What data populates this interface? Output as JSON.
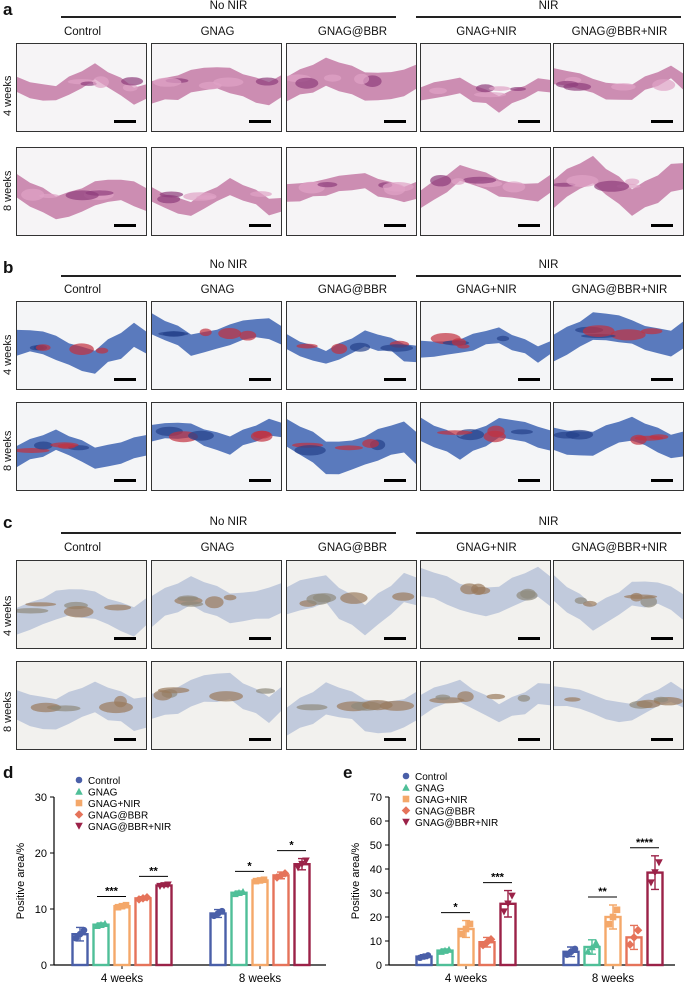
{
  "panels": [
    {
      "letter": "a",
      "group_left": "No NIR",
      "group_right": "NIR",
      "columns": [
        "Control",
        "GNAG",
        "GNAG@BBR",
        "GNAG+NIR",
        "GNAG@BBR+NIR"
      ],
      "rows": [
        "4 weeks",
        "8 weeks"
      ],
      "stain": "he"
    },
    {
      "letter": "b",
      "group_left": "No NIR",
      "group_right": "NIR",
      "columns": [
        "Control",
        "GNAG",
        "GNAG@BBR",
        "GNAG+NIR",
        "GNAG@BBR+NIR"
      ],
      "rows": [
        "4 weeks",
        "8 weeks"
      ],
      "stain": "masson"
    },
    {
      "letter": "c",
      "group_left": "No NIR",
      "group_right": "NIR",
      "columns": [
        "Control",
        "GNAG",
        "GNAG@BBR",
        "GNAG+NIR",
        "GNAG@BBR+NIR"
      ],
      "rows": [
        "4 weeks",
        "8 weeks"
      ],
      "stain": "ihc"
    }
  ],
  "colors": {
    "Control": "#4a5fa8",
    "GNAG": "#4fbf98",
    "GNAG+NIR": "#f4a86a",
    "GNAG@BBR": "#e5735a",
    "GNAG@BBR+NIR": "#9b2248"
  },
  "chart_data": [
    {
      "letter": "d",
      "type": "bar",
      "ylabel": "Positive area/%",
      "ylim": [
        0,
        30
      ],
      "yticks": [
        0,
        10,
        20,
        30
      ],
      "categories": [
        "4 weeks",
        "8 weeks"
      ],
      "series": [
        {
          "name": "Control",
          "marker": "circle",
          "color": "#4a5fa8",
          "values": [
            5.5,
            9.2
          ],
          "err": [
            1.2,
            0.7
          ]
        },
        {
          "name": "GNAG",
          "marker": "triangle",
          "color": "#4fbf98",
          "values": [
            7.2,
            12.9
          ],
          "err": [
            0.3,
            0.3
          ]
        },
        {
          "name": "GNAG+NIR",
          "marker": "square",
          "color": "#f4a86a",
          "values": [
            10.5,
            15.1
          ],
          "err": [
            0.3,
            0.2
          ]
        },
        {
          "name": "GNAG@BBR",
          "marker": "diamond",
          "color": "#e5735a",
          "values": [
            11.9,
            16.0
          ],
          "err": [
            0.3,
            0.6
          ]
        },
        {
          "name": "GNAG@BBR+NIR",
          "marker": "triangle-down",
          "color": "#9b2248",
          "values": [
            14.2,
            18.0
          ],
          "err": [
            0.2,
            1.0
          ]
        }
      ],
      "sig": [
        {
          "cat": 0,
          "from": 1,
          "to": 2,
          "label": "***"
        },
        {
          "cat": 0,
          "from": 3,
          "to": 4,
          "label": "**"
        },
        {
          "cat": 1,
          "from": 1,
          "to": 2,
          "label": "*"
        },
        {
          "cat": 1,
          "from": 3,
          "to": 4,
          "label": "*"
        }
      ]
    },
    {
      "letter": "e",
      "type": "bar",
      "ylabel": "Positive area/%",
      "ylim": [
        0,
        70
      ],
      "yticks": [
        0,
        10,
        20,
        30,
        40,
        50,
        60,
        70
      ],
      "categories": [
        "4 weeks",
        "8 weeks"
      ],
      "series": [
        {
          "name": "Control",
          "marker": "circle",
          "color": "#4a5fa8",
          "values": [
            3.5,
            5.5
          ],
          "err": [
            0.8,
            2.0
          ]
        },
        {
          "name": "GNAG",
          "marker": "triangle",
          "color": "#4fbf98",
          "values": [
            6.0,
            7.5
          ],
          "err": [
            0.7,
            3.0
          ]
        },
        {
          "name": "GNAG+NIR",
          "marker": "square",
          "color": "#f4a86a",
          "values": [
            15.0,
            20.0
          ],
          "err": [
            3.5,
            5.0
          ]
        },
        {
          "name": "GNAG@BBR",
          "marker": "diamond",
          "color": "#e5735a",
          "values": [
            9.5,
            11.5
          ],
          "err": [
            2.0,
            5.0
          ]
        },
        {
          "name": "GNAG@BBR+NIR",
          "marker": "triangle-down",
          "color": "#9b2248",
          "values": [
            25.5,
            38.5
          ],
          "err": [
            5.5,
            7.0
          ]
        }
      ],
      "sig": [
        {
          "cat": 0,
          "from": 1,
          "to": 2,
          "label": "*"
        },
        {
          "cat": 0,
          "from": 3,
          "to": 4,
          "label": "***"
        },
        {
          "cat": 1,
          "from": 1,
          "to": 2,
          "label": "**"
        },
        {
          "cat": 1,
          "from": 3,
          "to": 4,
          "label": "****"
        }
      ]
    }
  ]
}
